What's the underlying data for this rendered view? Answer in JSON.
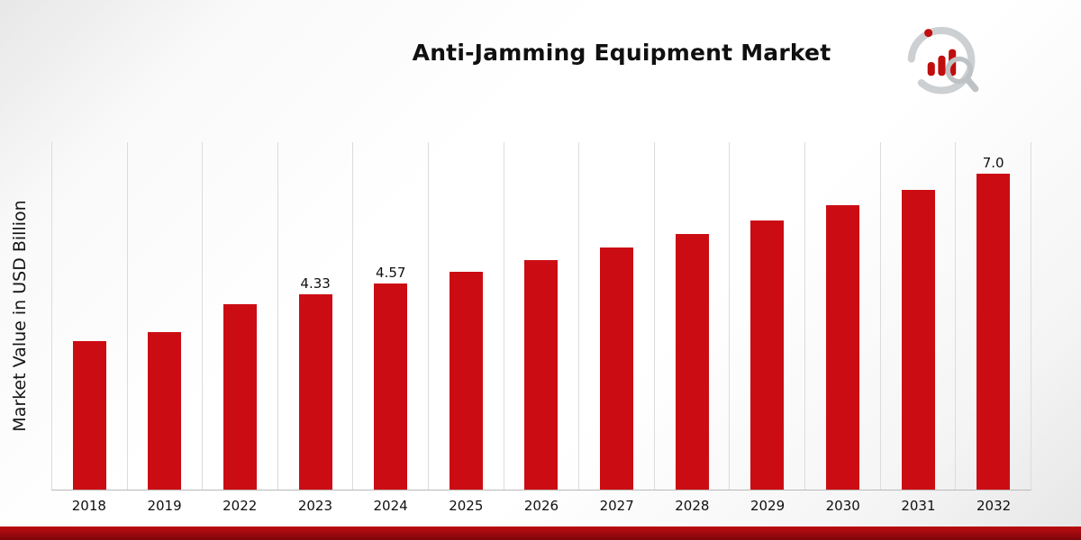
{
  "title": "Anti-Jamming Equipment Market",
  "y_axis_label": "Market Value in USD Billion",
  "logo": {
    "name": "market-research-future-logo"
  },
  "colors": {
    "bar": "#cb0d13",
    "footer_band_top": "#bb0b10",
    "footer_band_bottom": "#7c060b",
    "gridline": "#dcdcdc"
  },
  "chart_data": {
    "type": "bar",
    "title": "Anti-Jamming Equipment Market",
    "xlabel": "",
    "ylabel": "Market Value in USD Billion",
    "categories": [
      "2018",
      "2019",
      "2022",
      "2023",
      "2024",
      "2025",
      "2026",
      "2027",
      "2028",
      "2029",
      "2030",
      "2031",
      "2032"
    ],
    "values": [
      3.3,
      3.5,
      4.1,
      4.33,
      4.57,
      4.82,
      5.08,
      5.36,
      5.66,
      5.97,
      6.3,
      6.64,
      7.0
    ],
    "data_labels": [
      "",
      "",
      "",
      "4.33",
      "4.57",
      "",
      "",
      "",
      "",
      "",
      "",
      "",
      "7.0"
    ],
    "ylim": [
      0,
      7.7
    ],
    "grid": "vertical-only",
    "legend": "none",
    "bar_color": "#cb0d13"
  }
}
